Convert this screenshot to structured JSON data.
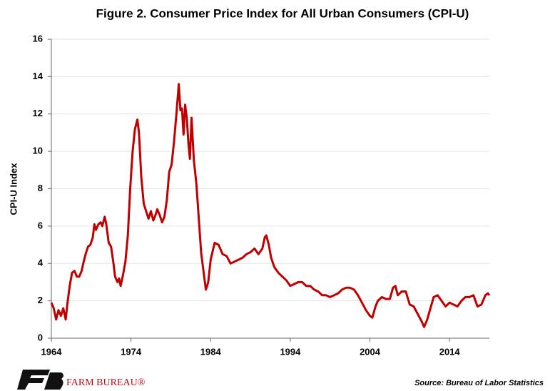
{
  "chart_data": {
    "type": "line",
    "title": "Figure 2. Consumer Price Index for All Urban Consumers (CPI-U)",
    "y_label": "CPI-U Index",
    "source": "Source: Bureau of Labor Statistics",
    "logo_text": "FARM BUREAU®",
    "color": "#c00000",
    "grid": true,
    "xlim": [
      1964,
      2019
    ],
    "xticks": [
      1964,
      1974,
      1984,
      1994,
      2004,
      2014
    ],
    "ylim": [
      0,
      16
    ],
    "yticks": [
      0,
      2,
      4,
      6,
      8,
      10,
      12,
      14,
      16
    ],
    "x": [
      1964.0,
      1964.3,
      1964.6,
      1964.9,
      1965.2,
      1965.5,
      1965.8,
      1966.0,
      1966.3,
      1966.6,
      1966.9,
      1967.2,
      1967.5,
      1967.8,
      1968.0,
      1968.3,
      1968.6,
      1968.9,
      1969.2,
      1969.4,
      1969.6,
      1969.9,
      1970.2,
      1970.4,
      1970.7,
      1970.9,
      1971.2,
      1971.5,
      1971.8,
      1972.0,
      1972.3,
      1972.5,
      1972.7,
      1973.0,
      1973.3,
      1973.6,
      1973.9,
      1974.2,
      1974.5,
      1974.8,
      1975.0,
      1975.3,
      1975.6,
      1975.9,
      1976.2,
      1976.5,
      1976.8,
      1977.0,
      1977.3,
      1977.6,
      1977.9,
      1978.2,
      1978.5,
      1978.8,
      1979.1,
      1979.4,
      1979.7,
      1980.0,
      1980.2,
      1980.4,
      1980.6,
      1980.8,
      1981.0,
      1981.2,
      1981.4,
      1981.6,
      1981.9,
      1982.2,
      1982.5,
      1982.8,
      1983.1,
      1983.4,
      1983.7,
      1984.0,
      1984.5,
      1985.0,
      1985.5,
      1986.0,
      1986.5,
      1987.0,
      1987.5,
      1988.0,
      1988.5,
      1989.0,
      1989.5,
      1990.0,
      1990.5,
      1990.8,
      1991.0,
      1991.3,
      1991.6,
      1992.0,
      1992.5,
      1993.0,
      1993.5,
      1994.0,
      1994.5,
      1995.0,
      1995.5,
      1996.0,
      1996.5,
      1997.0,
      1997.5,
      1998.0,
      1998.5,
      1999.0,
      1999.5,
      2000.0,
      2000.5,
      2001.0,
      2001.5,
      2002.0,
      2002.5,
      2003.0,
      2003.5,
      2004.0,
      2004.3,
      2004.7,
      2005.0,
      2005.5,
      2006.0,
      2006.5,
      2006.9,
      2007.2,
      2007.5,
      2008.0,
      2008.5,
      2009.0,
      2009.5,
      2010.0,
      2010.5,
      2010.8,
      2011.2,
      2011.6,
      2012.0,
      2012.5,
      2013.0,
      2013.5,
      2014.0,
      2014.5,
      2015.0,
      2015.5,
      2016.0,
      2016.5,
      2017.0,
      2017.5,
      2018.0,
      2018.5,
      2018.8,
      2019.0
    ],
    "values": [
      1.9,
      1.6,
      1.0,
      1.5,
      1.2,
      1.6,
      1.0,
      1.8,
      2.8,
      3.5,
      3.6,
      3.3,
      3.3,
      3.6,
      4.0,
      4.5,
      4.9,
      5.0,
      5.4,
      6.1,
      5.8,
      6.1,
      6.2,
      6.0,
      6.5,
      6.1,
      5.1,
      4.9,
      4.0,
      3.3,
      3.0,
      3.2,
      2.8,
      3.4,
      4.1,
      5.5,
      8.0,
      10.0,
      11.2,
      11.7,
      11.0,
      8.6,
      7.2,
      6.8,
      6.4,
      6.8,
      6.3,
      6.5,
      6.9,
      6.6,
      6.2,
      6.5,
      7.4,
      8.9,
      9.3,
      10.5,
      12.0,
      13.6,
      12.2,
      12.3,
      10.9,
      12.5,
      11.8,
      10.5,
      9.6,
      11.8,
      9.5,
      8.3,
      6.5,
      4.6,
      3.6,
      2.6,
      3.0,
      4.2,
      5.1,
      5.0,
      4.5,
      4.4,
      4.0,
      4.1,
      4.2,
      4.3,
      4.5,
      4.6,
      4.8,
      4.5,
      4.8,
      5.4,
      5.5,
      5.0,
      4.3,
      3.8,
      3.5,
      3.3,
      3.1,
      2.8,
      2.9,
      3.0,
      3.0,
      2.8,
      2.8,
      2.6,
      2.5,
      2.3,
      2.3,
      2.2,
      2.3,
      2.4,
      2.6,
      2.7,
      2.7,
      2.6,
      2.3,
      1.9,
      1.5,
      1.2,
      1.1,
      1.7,
      2.0,
      2.2,
      2.1,
      2.1,
      2.7,
      2.8,
      2.3,
      2.5,
      2.5,
      1.8,
      1.7,
      1.3,
      0.9,
      0.6,
      1.0,
      1.6,
      2.2,
      2.3,
      2.0,
      1.7,
      1.9,
      1.8,
      1.7,
      2.0,
      2.2,
      2.2,
      2.3,
      1.7,
      1.8,
      2.3,
      2.4,
      2.3
    ]
  }
}
